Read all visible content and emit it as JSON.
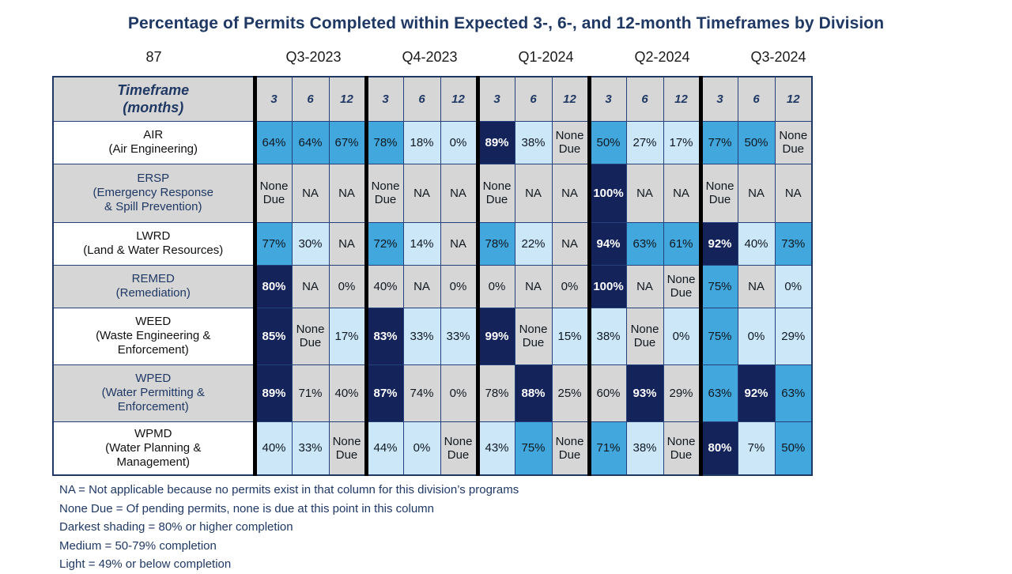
{
  "title": "Percentage of Permits Completed within Expected 3-, 6-, and 12-month Timeframes by Division",
  "corner_value": "87",
  "quarters": [
    "Q3-2023",
    "Q4-2023",
    "Q1-2024",
    "Q2-2024",
    "Q3-2024"
  ],
  "header": {
    "timeframe_line1": "Timeframe",
    "timeframe_line2": "(months)",
    "months": [
      "3",
      "6",
      "12"
    ]
  },
  "colors": {
    "dark": "#15235b",
    "medium": "#41a7dd",
    "light": "#cbe7f8",
    "gray": "#d6d6d6",
    "label_gray": "#d6d6d6",
    "label_white": "#ffffff",
    "navy_text": "#1f3864",
    "dark_cell_text": "#ffffff",
    "cell_text": "#101820",
    "grid_line": "#24417c",
    "group_divider": "#000000"
  },
  "legend_notes": [
    "NA = Not applicable because no permits exist in that column for this division’s programs",
    "None Due = Of pending permits, none is due at this point in this column",
    "Darkest shading = 80% or higher completion",
    "Medium = 50-79% completion",
    "Light = 49% or below completion"
  ],
  "chart_data": {
    "type": "heatmap",
    "title": "Percentage of Permits Completed within Expected 3-, 6-, and 12-month Timeframes by Division",
    "x_groups": [
      "Q3-2023",
      "Q4-2023",
      "Q1-2024",
      "Q2-2024",
      "Q3-2024"
    ],
    "x_sub": [
      "3",
      "6",
      "12"
    ],
    "shade_legend": {
      "dark": ">=80% completion",
      "medium": "50-79% completion",
      "light": "<=49% completion",
      "gray": "NA or None Due or unshaded"
    },
    "rows": [
      {
        "division": "AIR",
        "label_lines": [
          "AIR",
          "(Air Engineering)"
        ],
        "label_shade": "white",
        "cells": [
          [
            "64%",
            "m"
          ],
          [
            "64%",
            "m"
          ],
          [
            "67%",
            "m"
          ],
          [
            "78%",
            "m"
          ],
          [
            "18%",
            "l"
          ],
          [
            "0%",
            "l"
          ],
          [
            "89%",
            "d"
          ],
          [
            "38%",
            "l"
          ],
          [
            "None Due",
            "g"
          ],
          [
            "50%",
            "m"
          ],
          [
            "27%",
            "l"
          ],
          [
            "17%",
            "l"
          ],
          [
            "77%",
            "m"
          ],
          [
            "50%",
            "m"
          ],
          [
            "None Due",
            "g"
          ]
        ]
      },
      {
        "division": "ERSP",
        "label_lines": [
          "ERSP",
          "(Emergency Response",
          "& Spill Prevention)"
        ],
        "label_shade": "gray",
        "cells": [
          [
            "None Due",
            "g"
          ],
          [
            "NA",
            "g"
          ],
          [
            "NA",
            "g"
          ],
          [
            "None Due",
            "g"
          ],
          [
            "NA",
            "g"
          ],
          [
            "NA",
            "g"
          ],
          [
            "None Due",
            "g"
          ],
          [
            "NA",
            "g"
          ],
          [
            "NA",
            "g"
          ],
          [
            "100%",
            "d"
          ],
          [
            "NA",
            "g"
          ],
          [
            "NA",
            "g"
          ],
          [
            "None Due",
            "g"
          ],
          [
            "NA",
            "g"
          ],
          [
            "NA",
            "g"
          ]
        ]
      },
      {
        "division": "LWRD",
        "label_lines": [
          "LWRD",
          "(Land & Water Resources)"
        ],
        "label_shade": "white",
        "cells": [
          [
            "77%",
            "m"
          ],
          [
            "30%",
            "l"
          ],
          [
            "NA",
            "g"
          ],
          [
            "72%",
            "m"
          ],
          [
            "14%",
            "l"
          ],
          [
            "NA",
            "g"
          ],
          [
            "78%",
            "m"
          ],
          [
            "22%",
            "l"
          ],
          [
            "NA",
            "g"
          ],
          [
            "94%",
            "d"
          ],
          [
            "63%",
            "m"
          ],
          [
            "61%",
            "m"
          ],
          [
            "92%",
            "d"
          ],
          [
            "40%",
            "l"
          ],
          [
            "73%",
            "m"
          ]
        ]
      },
      {
        "division": "REMED",
        "label_lines": [
          "REMED",
          "(Remediation)"
        ],
        "label_shade": "gray",
        "cells": [
          [
            "80%",
            "d"
          ],
          [
            "NA",
            "g"
          ],
          [
            "0%",
            "g"
          ],
          [
            "40%",
            "g"
          ],
          [
            "NA",
            "g"
          ],
          [
            "0%",
            "g"
          ],
          [
            "0%",
            "g"
          ],
          [
            "NA",
            "g"
          ],
          [
            "0%",
            "g"
          ],
          [
            "100%",
            "d"
          ],
          [
            "NA",
            "g"
          ],
          [
            "None Due",
            "g"
          ],
          [
            "75%",
            "m"
          ],
          [
            "NA",
            "g"
          ],
          [
            "0%",
            "l"
          ]
        ]
      },
      {
        "division": "WEED",
        "label_lines": [
          "WEED",
          "(Waste Engineering &",
          "Enforcement)"
        ],
        "label_shade": "white",
        "cells": [
          [
            "85%",
            "d"
          ],
          [
            "None Due",
            "g"
          ],
          [
            "17%",
            "l"
          ],
          [
            "83%",
            "d"
          ],
          [
            "33%",
            "l"
          ],
          [
            "33%",
            "l"
          ],
          [
            "99%",
            "d"
          ],
          [
            "None Due",
            "g"
          ],
          [
            "15%",
            "l"
          ],
          [
            "38%",
            "l"
          ],
          [
            "None Due",
            "g"
          ],
          [
            "0%",
            "l"
          ],
          [
            "75%",
            "m"
          ],
          [
            "0%",
            "l"
          ],
          [
            "29%",
            "l"
          ]
        ]
      },
      {
        "division": "WPED",
        "label_lines": [
          "WPED",
          "(Water Permitting &",
          "Enforcement)"
        ],
        "label_shade": "gray",
        "cells": [
          [
            "89%",
            "d"
          ],
          [
            "71%",
            "g"
          ],
          [
            "40%",
            "g"
          ],
          [
            "87%",
            "d"
          ],
          [
            "74%",
            "g"
          ],
          [
            "0%",
            "g"
          ],
          [
            "78%",
            "g"
          ],
          [
            "88%",
            "d"
          ],
          [
            "25%",
            "g"
          ],
          [
            "60%",
            "g"
          ],
          [
            "93%",
            "d"
          ],
          [
            "29%",
            "g"
          ],
          [
            "63%",
            "m"
          ],
          [
            "92%",
            "d"
          ],
          [
            "63%",
            "m"
          ]
        ]
      },
      {
        "division": "WPMD",
        "label_lines": [
          "WPMD",
          "(Water Planning &",
          "Management)"
        ],
        "label_shade": "white",
        "cells": [
          [
            "40%",
            "l"
          ],
          [
            "33%",
            "l"
          ],
          [
            "None Due",
            "g"
          ],
          [
            "44%",
            "l"
          ],
          [
            "0%",
            "l"
          ],
          [
            "None Due",
            "g"
          ],
          [
            "43%",
            "l"
          ],
          [
            "75%",
            "m"
          ],
          [
            "None Due",
            "g"
          ],
          [
            "71%",
            "m"
          ],
          [
            "38%",
            "l"
          ],
          [
            "None Due",
            "g"
          ],
          [
            "80%",
            "d"
          ],
          [
            "7%",
            "l"
          ],
          [
            "50%",
            "m"
          ]
        ]
      }
    ]
  }
}
